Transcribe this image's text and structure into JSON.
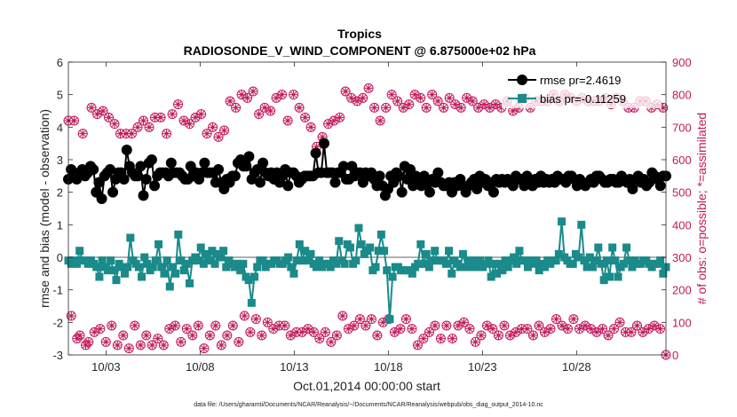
{
  "chart_data": {
    "type": "line",
    "title": "Tropics",
    "subtitle": "RADIOSONDE_V_WIND_COMPONENT @ 6.875000e+02 hPa",
    "xlabel": "Oct.01,2014 00:00:00 start",
    "ylabel": "rmse and bias (model - observation)",
    "ylabel_right": "# of obs: o=possible; *=assimilated",
    "x_ticks": [
      "10/03",
      "10/08",
      "10/13",
      "10/18",
      "10/23",
      "10/28"
    ],
    "x_tick_days": [
      3,
      8,
      13,
      18,
      23,
      28
    ],
    "xlim": [
      1,
      32.75
    ],
    "ylim": [
      -3,
      6
    ],
    "y_ticks": [
      "-3",
      "-2",
      "-1",
      "0",
      "1",
      "2",
      "3",
      "4",
      "5",
      "6"
    ],
    "ylim_right": [
      0,
      900
    ],
    "y_ticks_right": [
      "0",
      "100",
      "200",
      "300",
      "400",
      "500",
      "600",
      "700",
      "800",
      "900"
    ],
    "grid": false,
    "zero_line": 0,
    "legend_position": "top-right",
    "footer": "data file: /Users/gharamti/Documents/NCAR/Reanalysis/~/Documents/NCAR/Reanalysis/webpub/obs_diag_output_2014-10.nc",
    "series": [
      {
        "name": "rmse",
        "legend": "rmse pr=2.4619",
        "color": "#000000",
        "marker": "circle",
        "values": [
          2.4,
          2.7,
          2.6,
          2.4,
          2.6,
          2.7,
          2.5,
          2.6,
          2.8,
          2.7,
          2.0,
          2.3,
          1.8,
          2.5,
          2.6,
          2.7,
          2.0,
          2.4,
          2.6,
          2.6,
          2.4,
          3.3,
          2.8,
          2.6,
          2.5,
          2.5,
          2.8,
          1.9,
          2.4,
          2.9,
          3.0,
          2.2,
          2.5,
          2.6,
          2.6,
          2.6,
          2.5,
          2.9,
          2.6,
          2.6,
          2.6,
          2.5,
          2.4,
          2.4,
          2.8,
          2.5,
          2.6,
          2.4,
          2.6,
          2.9,
          2.6,
          2.6,
          2.6,
          2.3,
          2.7,
          2.3,
          2.1,
          2.4,
          2.3,
          2.5,
          2.5,
          2.9,
          3.0,
          2.8,
          2.8,
          3.1,
          2.4,
          2.6,
          2.7,
          2.3,
          2.9,
          2.6,
          2.5,
          2.6,
          2.4,
          2.6,
          2.3,
          2.5,
          2.7,
          2.2,
          2.6,
          2.6,
          2.5,
          2.3,
          2.4,
          2.5,
          2.5,
          2.5,
          2.5,
          3.2,
          2.6,
          2.6,
          3.5,
          2.6,
          2.6,
          2.6,
          2.3,
          2.6,
          2.6,
          2.8,
          2.4,
          2.4,
          2.8,
          2.5,
          2.6,
          2.6,
          2.3,
          2.6,
          2.5,
          2.6,
          2.4,
          2.2,
          2.5,
          2.2,
          1.9,
          2.1,
          2.5,
          2.3,
          2.6,
          2.5,
          2.0,
          2.8,
          2.4,
          2.7,
          2.2,
          2.5,
          2.4,
          2.2,
          2.5,
          2.3,
          2.0,
          2.4,
          2.3,
          2.6,
          2.3,
          2.2,
          2.2,
          2.3,
          2.0,
          2.3,
          2.2,
          2.4,
          2.2,
          2.0,
          2.2,
          2.3,
          2.4,
          2.1,
          2.5,
          2.3,
          2.4,
          2.2,
          2.3,
          2.0,
          2.4,
          2.3,
          2.4,
          2.3,
          2.4,
          2.3,
          2.2,
          2.5,
          2.4,
          2.4,
          2.2,
          2.5,
          2.4,
          2.2,
          2.4,
          2.3,
          2.5,
          2.3,
          2.4,
          2.3,
          2.4,
          2.3,
          2.5,
          2.4,
          2.4,
          2.3,
          2.5,
          2.5,
          2.4,
          2.2,
          2.4,
          2.3,
          2.2,
          2.3,
          2.4,
          2.3,
          2.5,
          2.5,
          2.4,
          2.3,
          2.3,
          2.4,
          2.4,
          2.3,
          2.3,
          2.5,
          2.4,
          2.3,
          2.4,
          2.1,
          2.4,
          2.5,
          2.3,
          2.4,
          2.2,
          2.3,
          2.6,
          2.5,
          2.4,
          2.2,
          2.5,
          2.5
        ]
      },
      {
        "name": "bias",
        "legend": "bias pr=-0.11259",
        "color": "#1a8a8a",
        "marker": "square",
        "values": [
          -0.1,
          -0.2,
          -0.1,
          -0.2,
          0.2,
          -0.1,
          -0.1,
          -0.2,
          -0.1,
          -0.2,
          -0.3,
          -0.6,
          -0.1,
          -0.3,
          -0.4,
          -0.1,
          -0.4,
          -0.7,
          -0.2,
          -0.3,
          -0.5,
          -0.3,
          0.6,
          -0.1,
          -0.2,
          -0.3,
          -0.6,
          0.0,
          -0.2,
          -0.4,
          -0.3,
          -0.1,
          0.4,
          -0.3,
          -0.5,
          -0.1,
          -0.9,
          -0.3,
          -0.5,
          0.7,
          -0.1,
          -0.4,
          -0.2,
          -0.8,
          -0.1,
          0.0,
          -0.1,
          0.3,
          -0.2,
          0.1,
          -0.1,
          0.2,
          -0.2,
          0.1,
          0.0,
          0.2,
          -0.3,
          -0.1,
          -0.2,
          -0.3,
          -0.2,
          -0.4,
          -0.2,
          -0.6,
          -0.7,
          -1.4,
          -0.6,
          -0.3,
          -0.1,
          -0.1,
          -0.3,
          -0.2,
          -0.2,
          -0.1,
          -0.1,
          -0.2,
          -0.2,
          -0.1,
          0.0,
          -0.3,
          -0.5,
          -0.1,
          0.4,
          -0.1,
          0.2,
          -0.1,
          0.1,
          -0.2,
          -0.3,
          -0.1,
          -0.3,
          -0.2,
          -0.2,
          -0.3,
          -0.1,
          -0.2,
          0.5,
          -0.1,
          -0.2,
          0.4,
          0.3,
          -0.2,
          -0.1,
          0.9,
          0.4,
          0.1,
          0.2,
          0.3,
          -0.4,
          -0.3,
          0.2,
          0.7,
          0.2,
          -0.4,
          -1.9,
          -0.6,
          -0.3,
          -0.3,
          -0.4,
          -0.4,
          -0.4,
          -0.4,
          -0.5,
          -0.3,
          -0.2,
          0.4,
          -0.2,
          0.1,
          -0.3,
          -0.1,
          0.2,
          -0.1,
          -0.1,
          -0.1,
          -0.2,
          0.2,
          -0.5,
          -0.1,
          -0.2,
          -0.3,
          0.1,
          -0.3,
          -0.1,
          -0.3,
          -0.1,
          -0.3,
          -0.1,
          -0.3,
          -0.2,
          -0.1,
          -0.6,
          -0.2,
          -0.5,
          -0.2,
          -0.4,
          -0.1,
          -0.3,
          -0.1,
          0.0,
          -0.2,
          0.2,
          -0.1,
          -0.1,
          -0.3,
          -0.1,
          -0.2,
          -0.1,
          -0.4,
          -0.2,
          -0.3,
          -0.1,
          -0.2,
          -0.1,
          -0.1,
          0.1,
          1.1,
          0.0,
          -0.1,
          -0.2,
          -0.2,
          0.1,
          0.0,
          1.0,
          -0.1,
          -0.3,
          0.0,
          -0.3,
          -0.1,
          0.3,
          -0.2,
          -0.7,
          -0.1,
          -0.6,
          0.3,
          -0.1,
          -0.6,
          -0.3,
          -0.2,
          0.3,
          -0.1,
          -0.3,
          -0.1,
          -0.2,
          -0.2,
          -0.1,
          -0.1,
          -0.2,
          -0.3,
          -0.2,
          -0.2,
          -0.1,
          -0.5,
          -0.3
        ]
      },
      {
        "name": "obs_possible",
        "axis": "right",
        "color": "#c2185b",
        "marker": "circle-open",
        "values": [
          720,
          120,
          720,
          50,
          60,
          680,
          30,
          40,
          760,
          70,
          740,
          80,
          750,
          40,
          730,
          90,
          710,
          30,
          680,
          60,
          680,
          20,
          680,
          90,
          700,
          30,
          720,
          60,
          700,
          30,
          730,
          50,
          730,
          30,
          680,
          80,
          740,
          90,
          770,
          40,
          720,
          80,
          710,
          60,
          730,
          90,
          740,
          20,
          680,
          60,
          700,
          90,
          670,
          30,
          690,
          60,
          780,
          90,
          760,
          40,
          800,
          120,
          790,
          70,
          810,
          110,
          740,
          60,
          760,
          100,
          750,
          80,
          790,
          90,
          800,
          90,
          720,
          60,
          800,
          70,
          760,
          70,
          730,
          80,
          700,
          70,
          640,
          50,
          670,
          70,
          710,
          40,
          720,
          60,
          730,
          120,
          810,
          80,
          790,
          90,
          780,
          110,
          790,
          90,
          820,
          110,
          760,
          60,
          720,
          100,
          760,
          110,
          800,
          70,
          780,
          80,
          760,
          110,
          770,
          80,
          800,
          30,
          790,
          50,
          760,
          70,
          800,
          90,
          780,
          50,
          760,
          90,
          790,
          50,
          770,
          90,
          760,
          100,
          790,
          80,
          780,
          40,
          760,
          60,
          770,
          90,
          760,
          80,
          770,
          60,
          760,
          90,
          780,
          60,
          750,
          70,
          760,
          80,
          790,
          80,
          760,
          60,
          780,
          90,
          780,
          70,
          780,
          80,
          800,
          110,
          780,
          90,
          800,
          80,
          790,
          110,
          780,
          80,
          790,
          90,
          780,
          80,
          780,
          70,
          780,
          80,
          790,
          60,
          770,
          80,
          790,
          100,
          780,
          70,
          760,
          70,
          760,
          90,
          780,
          70,
          780,
          80,
          760,
          90,
          770,
          80,
          760,
          0
        ]
      },
      {
        "name": "obs_assimilated",
        "axis": "right",
        "color": "#c2185b",
        "marker": "star",
        "values": [
          720,
          120,
          720,
          50,
          60,
          680,
          30,
          40,
          760,
          70,
          740,
          80,
          750,
          40,
          730,
          90,
          710,
          30,
          680,
          60,
          680,
          20,
          680,
          90,
          700,
          30,
          720,
          60,
          700,
          30,
          730,
          50,
          730,
          30,
          680,
          80,
          740,
          90,
          770,
          40,
          720,
          80,
          710,
          60,
          730,
          90,
          740,
          20,
          680,
          60,
          700,
          90,
          670,
          30,
          690,
          60,
          780,
          90,
          760,
          40,
          800,
          120,
          790,
          70,
          810,
          110,
          740,
          60,
          760,
          100,
          750,
          80,
          790,
          90,
          800,
          90,
          720,
          60,
          800,
          70,
          760,
          70,
          730,
          80,
          700,
          70,
          640,
          50,
          670,
          70,
          710,
          40,
          720,
          60,
          730,
          120,
          810,
          80,
          790,
          90,
          780,
          110,
          790,
          90,
          820,
          110,
          760,
          60,
          720,
          100,
          760,
          110,
          800,
          70,
          780,
          80,
          760,
          110,
          770,
          80,
          800,
          30,
          790,
          50,
          760,
          70,
          800,
          90,
          780,
          50,
          760,
          90,
          790,
          50,
          770,
          90,
          760,
          100,
          790,
          80,
          780,
          40,
          760,
          60,
          770,
          90,
          760,
          80,
          770,
          60,
          760,
          90,
          780,
          60,
          750,
          70,
          760,
          80,
          790,
          80,
          760,
          60,
          780,
          90,
          780,
          70,
          780,
          80,
          800,
          110,
          780,
          90,
          800,
          80,
          790,
          110,
          780,
          80,
          790,
          90,
          780,
          80,
          780,
          70,
          780,
          80,
          790,
          60,
          770,
          80,
          790,
          100,
          780,
          70,
          760,
          70,
          760,
          90,
          780,
          70,
          780,
          80,
          760,
          90,
          770,
          80,
          760,
          0
        ]
      }
    ]
  }
}
